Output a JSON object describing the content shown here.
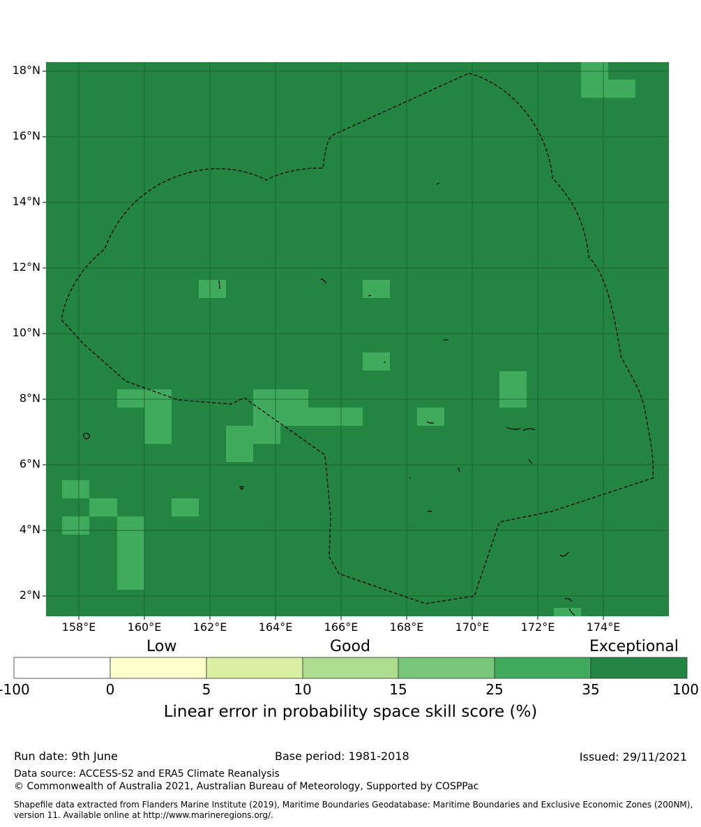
{
  "map": {
    "lat_labels": [
      "18°N",
      "16°N",
      "14°N",
      "12°N",
      "10°N",
      "8°N",
      "6°N",
      "4°N",
      "2°N"
    ],
    "lon_labels": [
      "158°E",
      "160°E",
      "162°E",
      "164°E",
      "166°E",
      "168°E",
      "170°E",
      "172°E",
      "174°E"
    ],
    "background_color": "#248542",
    "region_boundary": "dashed-black",
    "cell_color_default": "#248542",
    "cell_color_highlight": "#41ab5d"
  },
  "quality_scale": {
    "low": "Low",
    "good": "Good",
    "exceptional": "Exceptional"
  },
  "colorbar": {
    "ticks": [
      "-100",
      "0",
      "5",
      "10",
      "15",
      "25",
      "35",
      "100"
    ],
    "colors": [
      "#ffffff",
      "#ffffcc",
      "#d9f0a3",
      "#addd8e",
      "#78c679",
      "#41ab5d",
      "#238443"
    ],
    "title": "Linear error in probability space skill score (%)"
  },
  "footer": {
    "run_date": "Run date: 9th June",
    "base_period": "Base period: 1981-2018",
    "issued": "Issued: 29/11/2021",
    "data_source": "Data source: ACCESS-S2 and ERA5 Climate Reanalysis",
    "copyright": "© Commonwealth of Australia 2021, Australian Bureau of Meteorology, Supported by COSPPac",
    "shapefile": "Shapefile data extracted from Flanders Marine Institute (2019), Maritime Boundaries Geodatabase: Maritime Boundaries and Exclusive Economic Zones (200NM), version 11. Available online at http://www.marineregions.org/."
  }
}
